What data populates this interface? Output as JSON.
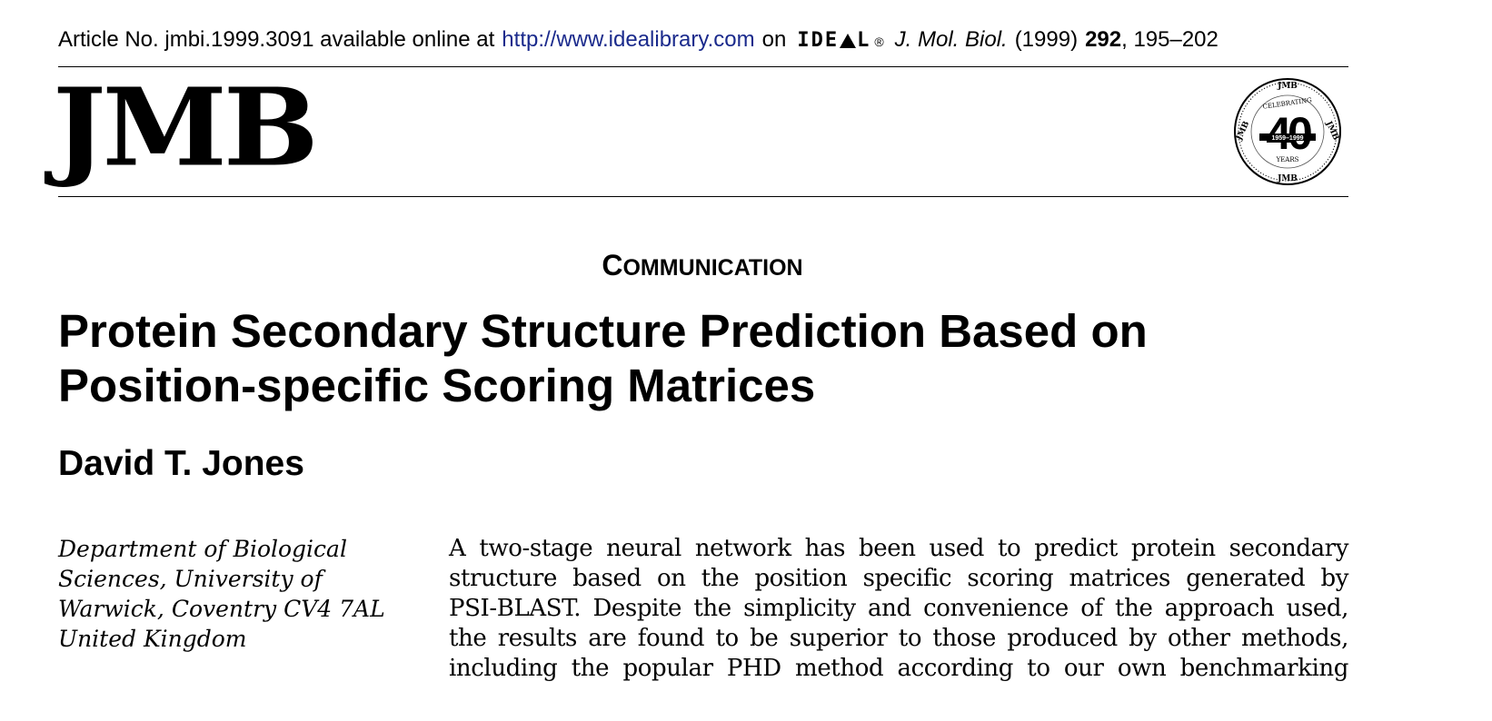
{
  "header": {
    "article_no": "Article No. jmbi.1999.3091 available online at",
    "url": "http://www.idealibrary.com",
    "on": "on",
    "ideal_logo": "IDEAL",
    "registered": "®",
    "journal": "J. Mol. Biol.",
    "year": "(1999)",
    "volume": "292",
    "pages": ", 195–202"
  },
  "masthead": {
    "logo": "JMB",
    "seal": {
      "top": "JMB",
      "arc": "CELEBRATING",
      "number": "40",
      "years_range": "1959–1999",
      "years": "YEARS",
      "left": "JMB",
      "right": "JMB",
      "bottom": "JMB"
    }
  },
  "section": {
    "first_letter": "C",
    "rest": "OMMUNICATION"
  },
  "title_lines": [
    "Protein Secondary Structure Prediction Based on",
    "Position-specific Scoring Matrices"
  ],
  "author": "David T. Jones",
  "affiliation_lines": [
    "Department of Biological",
    "Sciences, University of",
    "Warwick, Coventry CV4 7AL",
    "United Kingdom"
  ],
  "abstract_lines": [
    "A two-stage neural network has been used to predict protein secondary",
    "structure based on the position specific scoring matrices generated by",
    "PSI-BLAST. Despite the simplicity and convenience of the approach used,",
    "the results are found to be superior to those produced by other methods,",
    "including the popular PHD method according to our own benchmarking"
  ],
  "colors": {
    "link": "#1a2a8c",
    "text": "#000000",
    "background": "#ffffff"
  }
}
